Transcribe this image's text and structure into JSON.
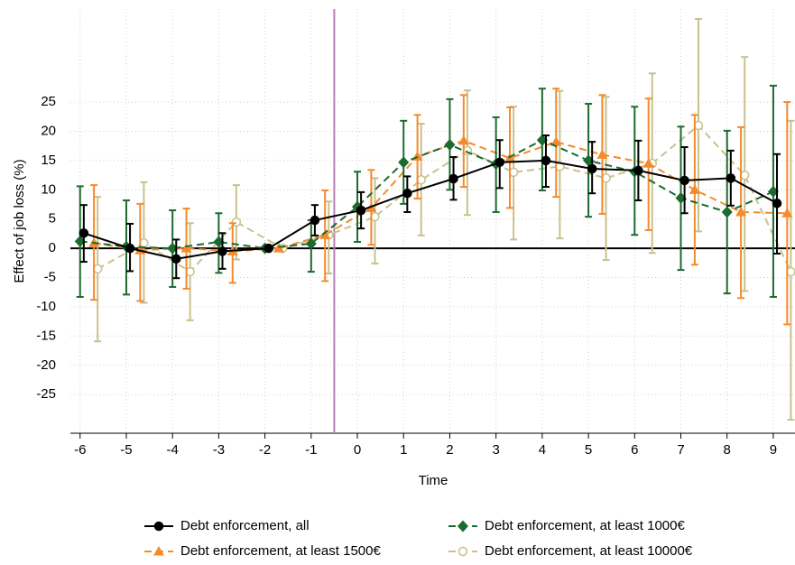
{
  "chart_data": {
    "type": "errorbar_line",
    "y_label": "Effect of job loss (%)",
    "x_label": "Time",
    "xlim": [
      -6.21,
      9.47
    ],
    "ylim": [
      -31.6,
      40.9
    ],
    "xticks": [
      -6,
      -5,
      -4,
      -3,
      -2,
      -1,
      0,
      1,
      2,
      3,
      4,
      5,
      6,
      7,
      8,
      9
    ],
    "yticks": [
      -25,
      -20,
      -15,
      -10,
      -5,
      0,
      5,
      10,
      15,
      20,
      25
    ],
    "grid": true,
    "vline": -0.5,
    "vline_color": "#b77fb8",
    "hline": 0,
    "legend_position": "bottom",
    "series": [
      {
        "name": "Debt enforcement, all",
        "color": "#000000",
        "marker": "circle",
        "dash": false,
        "x": [
          -5.92,
          -4.92,
          -3.92,
          -2.92,
          -1.92,
          -0.92,
          0.08,
          1.08,
          2.08,
          3.08,
          4.08,
          5.08,
          6.08,
          7.08,
          8.08,
          9.08
        ],
        "values": [
          2.6,
          0.0,
          -1.8,
          -0.5,
          0,
          4.8,
          6.5,
          9.4,
          11.9,
          14.7,
          15.0,
          13.6,
          13.3,
          11.6,
          12.0,
          7.7
        ],
        "lower": [
          -2.3,
          -3.9,
          -5.1,
          -3.5,
          0,
          2.2,
          3.4,
          6.2,
          8.3,
          10.3,
          10.5,
          9.4,
          8.2,
          6.0,
          7.3,
          -0.9
        ],
        "upper": [
          7.4,
          4.2,
          1.5,
          2.6,
          0,
          7.4,
          9.6,
          12.3,
          15.6,
          18.5,
          19.3,
          18.2,
          18.4,
          17.3,
          16.7,
          16.1
        ]
      },
      {
        "name": "Debt enforcement, at least 1000€",
        "color": "#1b6b2f",
        "marker": "diamond",
        "dash": true,
        "x": [
          -6,
          -5,
          -4,
          -3,
          -2,
          -1,
          0,
          1,
          2,
          3,
          4,
          5,
          6,
          7,
          8,
          9
        ],
        "values": [
          1.2,
          0.3,
          0,
          1.1,
          0,
          0.8,
          7.1,
          14.7,
          17.7,
          14.4,
          18.5,
          15.0,
          13.1,
          8.6,
          6.2,
          9.7
        ],
        "lower": [
          -8.3,
          -7.9,
          -6.6,
          -4.2,
          0,
          -4.0,
          1.1,
          7.6,
          10.0,
          6.2,
          9.9,
          5.4,
          2.3,
          -3.7,
          -7.7,
          -8.3
        ],
        "upper": [
          10.6,
          8.2,
          6.5,
          6.0,
          0,
          4.8,
          13.1,
          21.8,
          25.5,
          22.4,
          27.3,
          24.7,
          24.2,
          20.8,
          20.1,
          27.8
        ]
      },
      {
        "name": "Debt enforcement, at least 1500€",
        "color": "#f58a2c",
        "marker": "triangle",
        "dash": true,
        "x": [
          -5.7,
          -4.7,
          -3.7,
          -2.7,
          -1.7,
          -0.7,
          0.3,
          1.3,
          2.3,
          3.3,
          4.3,
          5.3,
          6.3,
          7.3,
          8.3,
          9.3
        ],
        "values": [
          0.9,
          -0.3,
          0,
          -0.5,
          0,
          2.3,
          6.9,
          15.7,
          18.4,
          15.4,
          18.2,
          16.0,
          14.5,
          10.0,
          6.2,
          6.0
        ],
        "lower": [
          -8.8,
          -9.0,
          -6.9,
          -5.9,
          0,
          -5.6,
          0.6,
          8.5,
          10.5,
          6.9,
          8.8,
          5.9,
          3.1,
          -2.8,
          -8.5,
          -13.0
        ],
        "upper": [
          10.8,
          7.6,
          6.8,
          4.3,
          0,
          9.9,
          13.4,
          22.8,
          26.2,
          24.1,
          27.3,
          26.2,
          25.6,
          22.8,
          20.7,
          25.0
        ]
      },
      {
        "name": "Debt enforcement, at least 10000€",
        "color": "#c9c18c",
        "marker": "hollow-circle",
        "dash": true,
        "x": [
          -5.62,
          -4.62,
          -3.62,
          -2.62,
          -1.62,
          -0.62,
          0.38,
          1.38,
          2.38,
          3.38,
          4.38,
          5.38,
          6.38,
          7.38,
          8.38,
          9.38
        ],
        "values": [
          -3.5,
          0.9,
          -4.0,
          4.5,
          0,
          2.3,
          5.4,
          11.7,
          16.7,
          13.0,
          14.0,
          12.0,
          14.5,
          21.0,
          12.5,
          -4.0
        ],
        "lower": [
          -15.9,
          -9.3,
          -12.3,
          -1.9,
          0,
          -4.3,
          -2.6,
          2.2,
          5.7,
          1.5,
          1.7,
          -2.0,
          -0.8,
          2.9,
          -7.3,
          -29.3
        ],
        "upper": [
          8.8,
          11.3,
          4.3,
          10.8,
          0,
          8.0,
          12.0,
          21.3,
          27.0,
          24.2,
          26.9,
          25.9,
          29.9,
          39.2,
          32.7,
          21.8
        ]
      }
    ]
  }
}
